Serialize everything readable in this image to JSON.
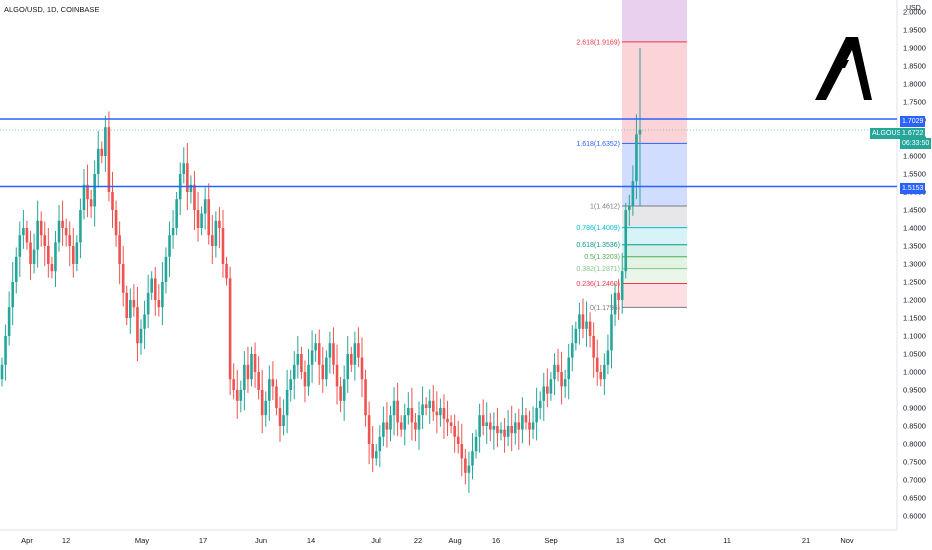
{
  "header": {
    "title": "ALGO/USD, 1D, COINBASE",
    "unit": "USD"
  },
  "price_tags": {
    "symbol": "ALGOUSD",
    "last": "1.6722",
    "countdown": "06:33:50",
    "hline_upper": "1.7029",
    "hline_lower": "1.5153"
  },
  "colors": {
    "up": "#26a69a",
    "down": "#ef5350",
    "hline": "#2962ff",
    "symbol_tag": "#26a69a",
    "logo": "#000000"
  },
  "logo": {
    "icon": "algorand-logo-icon"
  },
  "fib": {
    "levels": [
      {
        "label": "2.618(1.9169)",
        "price": 1.9169,
        "color": "#f23645"
      },
      {
        "label": "1.618(1.6352)",
        "price": 1.6352,
        "color": "#2962ff"
      },
      {
        "label": "1(1.4612)",
        "price": 1.4612,
        "color": "#787b86"
      },
      {
        "label": "0.786(1.4009)",
        "price": 1.4009,
        "color": "#00bcd4"
      },
      {
        "label": "0.618(1.3536)",
        "price": 1.3536,
        "color": "#089981"
      },
      {
        "label": "0.5(1.3203)",
        "price": 1.3203,
        "color": "#4caf50"
      },
      {
        "label": "0.382(1.2871)",
        "price": 1.2871,
        "color": "#81c784"
      },
      {
        "label": "0.236(1.2460)",
        "price": 1.246,
        "color": "#f23645"
      },
      {
        "label": "0(1.1795)",
        "price": 1.1795,
        "color": "#787b86"
      }
    ]
  },
  "chart_data": {
    "type": "candlestick",
    "title": "ALGO/USD, 1D, COINBASE",
    "ylim": [
      0.55,
      2.0
    ],
    "y_ticks": [
      "0.6000",
      "0.6500",
      "0.7000",
      "0.7500",
      "0.8000",
      "0.8500",
      "0.9000",
      "0.9500",
      "1.0000",
      "1.0500",
      "1.1000",
      "1.1500",
      "1.2000",
      "1.2500",
      "1.3000",
      "1.3500",
      "1.4000",
      "1.4500",
      "1.5000",
      "1.5500",
      "1.6000",
      "1.6500",
      "1.7000",
      "1.7500",
      "1.8000",
      "1.8500",
      "1.9000",
      "1.9500",
      "2.0000"
    ],
    "x_ticks": [
      "Apr",
      "12",
      "May",
      "17",
      "Jun",
      "14",
      "Jul",
      "22",
      "Aug",
      "16",
      "Sep",
      "13",
      "Oct",
      "11",
      "21",
      "Nov"
    ],
    "horizontal_lines": [
      1.7029,
      1.5153
    ],
    "last_price": 1.6722,
    "candle_closes": [
      1.02,
      1.1,
      1.18,
      1.25,
      1.32,
      1.38,
      1.4,
      1.36,
      1.3,
      1.34,
      1.42,
      1.38,
      1.35,
      1.3,
      1.28,
      1.36,
      1.42,
      1.4,
      1.38,
      1.35,
      1.3,
      1.36,
      1.45,
      1.52,
      1.48,
      1.46,
      1.55,
      1.62,
      1.6,
      1.68,
      1.5,
      1.45,
      1.38,
      1.3,
      1.22,
      1.15,
      1.2,
      1.18,
      1.08,
      1.12,
      1.16,
      1.22,
      1.26,
      1.2,
      1.18,
      1.25,
      1.32,
      1.38,
      1.4,
      1.48,
      1.55,
      1.58,
      1.5,
      1.52,
      1.45,
      1.4,
      1.44,
      1.48,
      1.38,
      1.35,
      1.42,
      1.4,
      1.3,
      1.26,
      0.98,
      0.95,
      0.92,
      0.95,
      1.02,
      0.98,
      1.05,
      1.0,
      0.95,
      0.88,
      0.92,
      0.98,
      0.96,
      0.9,
      0.85,
      0.88,
      0.95,
      0.98,
      1.02,
      1.05,
      1.0,
      0.96,
      1.02,
      1.06,
      1.08,
      1.02,
      0.98,
      1.04,
      1.08,
      1.02,
      0.96,
      0.92,
      0.98,
      1.05,
      1.02,
      1.08,
      1.04,
      0.98,
      0.88,
      0.8,
      0.76,
      0.78,
      0.82,
      0.86,
      0.84,
      0.88,
      0.92,
      0.86,
      0.84,
      0.88,
      0.9,
      0.86,
      0.84,
      0.88,
      0.91,
      0.9,
      0.92,
      0.89,
      0.88,
      0.9,
      0.87,
      0.86,
      0.85,
      0.82,
      0.8,
      0.76,
      0.72,
      0.74,
      0.78,
      0.82,
      0.88,
      0.85,
      0.86,
      0.84,
      0.85,
      0.83,
      0.84,
      0.82,
      0.85,
      0.83,
      0.86,
      0.84,
      0.88,
      0.86,
      0.84,
      0.86,
      0.9,
      0.92,
      0.96,
      0.94,
      0.98,
      1.02,
      1.0,
      0.96,
      0.98,
      1.04,
      1.08,
      1.12,
      1.16,
      1.12,
      1.14,
      1.1,
      1.04,
      1.0,
      0.98,
      1.02,
      1.06,
      1.16,
      1.22,
      1.2,
      1.28,
      1.45,
      1.46,
      1.53,
      1.66,
      1.6722
    ]
  }
}
